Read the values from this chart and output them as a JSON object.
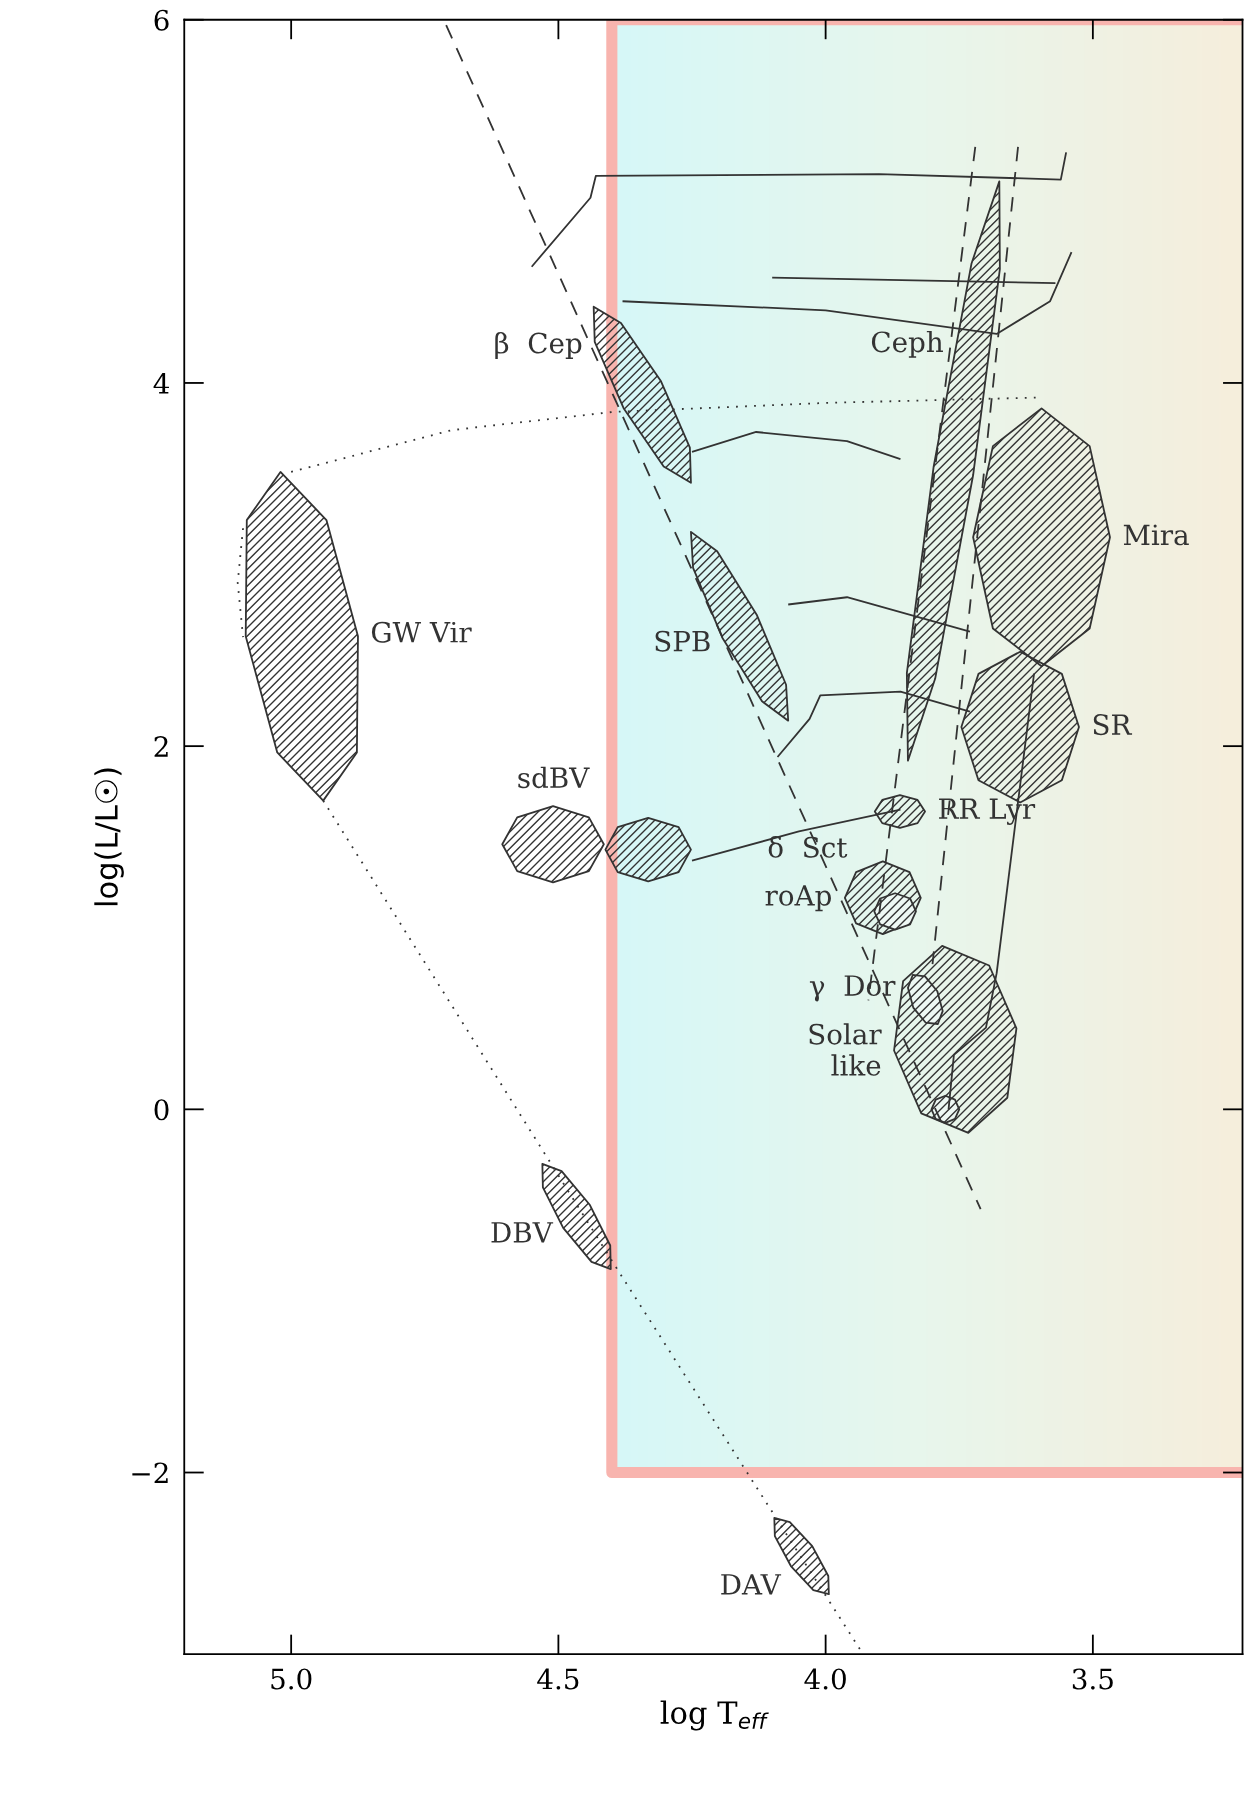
{
  "chart_data": {
    "type": "line",
    "xlabel": "log T$_{eff}$",
    "ylabel": "log(L/L☉)",
    "xlim": [
      5.2,
      3.22
    ],
    "ylim": [
      -3,
      6
    ],
    "xticks": [
      {
        "value": 5.0,
        "label": "5.0"
      },
      {
        "value": 4.5,
        "label": "4.5"
      },
      {
        "value": 4.0,
        "label": "4.0"
      },
      {
        "value": 3.5,
        "label": "3.5"
      }
    ],
    "yticks": [
      {
        "value": -2,
        "label": "−2"
      },
      0,
      2,
      4,
      6
    ],
    "grid": false,
    "legend": false,
    "series": [
      {
        "color": "#f8b4ae",
        "line_style": "solid",
        "x": [
          3.22,
          4.4,
          4.4,
          3.22
        ],
        "values": [
          -2,
          -2,
          6,
          6
        ]
      },
      {
        "type": "line",
        "color": "#333333",
        "line_style": "dashed",
        "x": [
          4.71,
          3.71
        ],
        "values": [
          5.97,
          -0.55
        ]
      },
      {
        "type": "line",
        "color": "#333333",
        "line_style": "dashed",
        "x": [
          3.72,
          3.92
        ],
        "values": [
          5.3,
          0.6
        ]
      },
      {
        "type": "line",
        "color": "#333333",
        "line_style": "dashed",
        "x": [
          3.64,
          3.8
        ],
        "values": [
          5.3,
          0.8
        ]
      },
      {
        "type": "line",
        "color": "#333333",
        "line_style": "dotted",
        "x": [
          4.94,
          4.39,
          3.93
        ],
        "values": [
          1.7,
          -0.88,
          -3.0
        ]
      },
      {
        "type": "line",
        "color": "#333333",
        "line_style": "dotted",
        "x": [
          5.0,
          4.7,
          4.4,
          4.0,
          3.6
        ],
        "values": [
          3.51,
          3.74,
          3.84,
          3.89,
          3.92
        ]
      },
      {
        "type": "line",
        "color": "#333333",
        "line_style": "dotted",
        "x": [
          5.09,
          5.1,
          5.09
        ],
        "values": [
          3.2,
          2.9,
          2.6
        ]
      },
      {
        "type": "line",
        "color": "#333333",
        "line_style": "solid",
        "x": [
          4.55,
          4.44,
          4.43,
          3.9,
          3.56,
          3.55
        ],
        "values": [
          4.64,
          5.02,
          5.14,
          5.15,
          5.12,
          5.27
        ]
      },
      {
        "type": "line",
        "color": "#333333",
        "line_style": "solid",
        "x": [
          4.38,
          4.0,
          3.68,
          3.58,
          3.54
        ],
        "values": [
          4.45,
          4.4,
          4.27,
          4.45,
          4.72
        ]
      },
      {
        "type": "line",
        "color": "#333333",
        "line_style": "solid",
        "x": [
          4.1,
          3.57
        ],
        "values": [
          4.58,
          4.55
        ]
      },
      {
        "type": "line",
        "color": "#333333",
        "line_style": "solid",
        "x": [
          4.25,
          4.13,
          3.96,
          3.86
        ],
        "values": [
          3.62,
          3.73,
          3.68,
          3.58
        ]
      },
      {
        "type": "line",
        "color": "#333333",
        "line_style": "solid",
        "x": [
          4.07,
          3.96,
          3.73
        ],
        "values": [
          2.78,
          2.82,
          2.63
        ]
      },
      {
        "type": "line",
        "color": "#333333",
        "line_style": "solid",
        "x": [
          4.09,
          4.03,
          4.01,
          3.86,
          3.73
        ],
        "values": [
          1.94,
          2.15,
          2.28,
          2.3,
          2.19
        ]
      },
      {
        "type": "line",
        "color": "#333333",
        "line_style": "solid",
        "x": [
          4.25,
          4.05,
          3.86
        ],
        "values": [
          1.37,
          1.53,
          1.65
        ]
      },
      {
        "type": "line",
        "color": "#333333",
        "line_style": "solid",
        "x": [
          3.77,
          3.76,
          3.7,
          3.68,
          3.61
        ],
        "values": [
          0.0,
          0.3,
          0.45,
          0.75,
          2.4
        ]
      },
      {
        "type": "area",
        "color": "#333333",
        "x": [
          5.02,
          4.934,
          4.875,
          4.877,
          4.94,
          5.026,
          5.085,
          5.083,
          5.02
        ],
        "values": [
          3.51,
          3.245,
          2.605,
          1.965,
          1.7,
          1.965,
          2.605,
          3.245,
          3.51
        ]
      },
      {
        "type": "area",
        "color": "#333333",
        "x": [
          4.434,
          4.383,
          4.308,
          4.254,
          4.252,
          4.303,
          4.378,
          4.432,
          4.434
        ],
        "values": [
          4.42,
          4.33,
          4.009,
          3.644,
          3.45,
          3.54,
          3.861,
          4.226,
          4.42
        ]
      },
      {
        "type": "area",
        "color": "#333333",
        "x": [
          4.252,
          4.203,
          4.129,
          4.074,
          4.07,
          4.119,
          4.193,
          4.248,
          4.252
        ],
        "values": [
          3.18,
          3.073,
          2.724,
          2.338,
          2.14,
          2.247,
          2.596,
          2.982,
          3.18
        ]
      },
      {
        "type": "area",
        "color": "#333333",
        "x": [
          4.605,
          4.577,
          4.51,
          4.443,
          4.415,
          4.443,
          4.51,
          4.577,
          4.605
        ],
        "values": [
          1.46,
          1.608,
          1.67,
          1.608,
          1.46,
          1.312,
          1.25,
          1.312,
          1.46
        ]
      },
      {
        "type": "area",
        "color": "#333333",
        "x": [
          4.412,
          4.389,
          4.332,
          4.275,
          4.252,
          4.275,
          4.332,
          4.389,
          4.412
        ],
        "values": [
          1.43,
          1.554,
          1.605,
          1.554,
          1.43,
          1.306,
          1.255,
          1.306,
          1.43
        ]
      },
      {
        "type": "area",
        "color": "#333333",
        "x": [
          3.675,
          3.674,
          3.724,
          3.795,
          3.846,
          3.848,
          3.798,
          3.756,
          3.727,
          3.675
        ],
        "values": [
          5.11,
          4.627,
          3.493,
          2.372,
          1.92,
          2.403,
          3.537,
          4.2,
          4.658,
          5.11
        ]
      },
      {
        "type": "area",
        "color": "#333333",
        "x": [
          3.596,
          3.506,
          3.468,
          3.506,
          3.596,
          3.687,
          3.724,
          3.687,
          3.596
        ],
        "values": [
          3.86,
          3.652,
          3.15,
          2.648,
          2.44,
          2.648,
          3.15,
          3.652,
          3.86
        ]
      },
      {
        "type": "area",
        "color": "#333333",
        "x": [
          3.636,
          3.558,
          3.526,
          3.558,
          3.636,
          3.714,
          3.746,
          3.714,
          3.636
        ],
        "values": [
          2.52,
          2.398,
          2.105,
          1.812,
          1.69,
          1.812,
          2.105,
          2.398,
          2.52
        ]
      },
      {
        "type": "area",
        "color": "#333333",
        "x": [
          3.861,
          3.828,
          3.814,
          3.828,
          3.861,
          3.894,
          3.908,
          3.894,
          3.861
        ],
        "values": [
          1.73,
          1.704,
          1.64,
          1.576,
          1.55,
          1.576,
          1.64,
          1.704,
          1.73
        ]
      },
      {
        "type": "area",
        "color": "#333333",
        "x": [
          3.964,
          3.943,
          3.893,
          3.843,
          3.822,
          3.843,
          3.893,
          3.943,
          3.964
        ],
        "values": [
          1.165,
          1.306,
          1.365,
          1.306,
          1.165,
          1.024,
          0.965,
          1.024,
          1.165
        ]
      },
      {
        "type": "area",
        "color": "#333333",
        "x": [
          3.909,
          3.898,
          3.87,
          3.842,
          3.831,
          3.842,
          3.87,
          3.898,
          3.909
        ],
        "values": [
          1.09,
          1.161,
          1.19,
          1.161,
          1.09,
          1.019,
          0.99,
          1.019,
          1.09
        ]
      },
      {
        "type": "area",
        "color": "#333333",
        "x": [
          3.782,
          3.694,
          3.643,
          3.66,
          3.733,
          3.821,
          3.872,
          3.855,
          3.782
        ],
        "values": [
          0.9,
          0.792,
          0.446,
          0.064,
          -0.13,
          -0.022,
          0.324,
          0.706,
          0.9
        ]
      },
      {
        "type": "area",
        "color": "#333333",
        "x": [
          3.837,
          3.814,
          3.791,
          3.781,
          3.79,
          3.813,
          3.836,
          3.846,
          3.837
        ],
        "values": [
          0.74,
          0.732,
          0.65,
          0.541,
          0.47,
          0.478,
          0.56,
          0.669,
          0.74
        ]
      },
      {
        "type": "area",
        "color": "#333333",
        "x": [
          3.802,
          3.794,
          3.776,
          3.758,
          3.75,
          3.758,
          3.776,
          3.794,
          3.802
        ],
        "values": [
          0,
          0.053,
          0.075,
          0.053,
          0,
          -0.053,
          -0.075,
          -0.053,
          0
        ]
      },
      {
        "type": "area",
        "color": "#333333",
        "x": [
          4.53,
          4.494,
          4.441,
          4.403,
          4.402,
          4.438,
          4.491,
          4.529,
          4.53
        ],
        "values": [
          -0.3,
          -0.34,
          -0.527,
          -0.75,
          -0.88,
          -0.84,
          -0.653,
          -0.43,
          -0.3
        ]
      },
      {
        "type": "area",
        "color": "#333333",
        "x": [
          4.096,
          4.067,
          4.025,
          3.995,
          3.994,
          4.023,
          4.065,
          4.095,
          4.096
        ],
        "values": [
          -2.25,
          -2.273,
          -2.405,
          -2.57,
          -2.67,
          -2.647,
          -2.515,
          -2.35,
          -2.25
        ]
      }
    ],
    "annotations": [
      {
        "text": "β  Cep",
        "x": 4.432,
        "y": 4.226
      },
      {
        "text": "Ceph",
        "x": 3.756,
        "y": 4.2
      },
      {
        "text": "Mira",
        "x": 3.468,
        "y": 3.15
      },
      {
        "text": "GW Vir",
        "x": 4.875,
        "y": 2.605
      },
      {
        "text": "SPB",
        "x": 4.193,
        "y": 2.596
      },
      {
        "text": "SR",
        "x": 3.526,
        "y": 2.105
      },
      {
        "text": "sdBV",
        "x": 4.51,
        "y": 1.67
      },
      {
        "text": "RR Lyr",
        "x": 3.814,
        "y": 1.64
      },
      {
        "text": "δ  Sct",
        "x": 3.943,
        "y": 1.306
      },
      {
        "text": "roAp",
        "x": 3.964,
        "y": 1.165
      },
      {
        "text": "γ  Dor",
        "x": 3.846,
        "y": 0.669
      },
      {
        "text": "Solar\nlike",
        "x": 3.872,
        "y": 0.324
      },
      {
        "text": "DBV",
        "x": 4.491,
        "y": -0.653
      },
      {
        "text": "DAV",
        "x": 4.065,
        "y": -2.515
      }
    ]
  }
}
